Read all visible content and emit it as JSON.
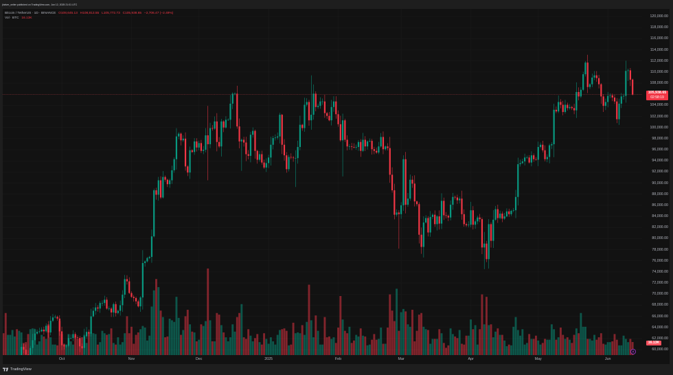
{
  "header": {
    "published_text": "jhalver_writer published on TradingView.com, Jun 12, 2025 21:01 UTC"
  },
  "legend": {
    "symbol": "Bitcoin / TetherUS · 1D · BINANCE",
    "open_label": "O",
    "open": "108,645.13",
    "high_label": "H",
    "high": "108,813.55",
    "low_label": "L",
    "low": "105,772.73",
    "close_label": "C",
    "close": "105,938.65",
    "change": "−2,706.47 (−2.49%)",
    "volume_label": "Vol · BTC",
    "volume_value": "16.13K"
  },
  "price_badge": {
    "price": "105,938.65",
    "countdown": "02:58:19"
  },
  "volume_badge": {
    "value": "16.13K"
  },
  "footer": {
    "brand": "TradingView",
    "logo_icon": "tradingview-logo-icon"
  },
  "icons": {
    "bolt": "lightning-bolt-icon"
  },
  "colors": {
    "up": "#089981",
    "down": "#f23645",
    "volume_up": "rgba(8,153,129,0.5)",
    "volume_down": "rgba(242,54,69,0.5)",
    "grid": "#1b1b1b",
    "price_line": "#f23645",
    "background": "#121212"
  },
  "chart_data": {
    "type": "candlestick",
    "title": "Bitcoin / TetherUS · 1D · BINANCE",
    "interval": "1D",
    "x_start": "2024-09-05",
    "x_end": "2025-06-12",
    "ylabel": "USDT",
    "ylim": [
      60000,
      120000
    ],
    "grid": true,
    "current_price": 105938.65,
    "first_open": 57.9,
    "closes_unit": "thousand USDT",
    "closes": [
      56.2,
      53.9,
      54.1,
      54.8,
      57.0,
      57.6,
      57.3,
      58.1,
      60.5,
      60.0,
      59.1,
      58.2,
      60.3,
      61.7,
      62.9,
      63.2,
      63.3,
      63.6,
      63.3,
      64.3,
      63.1,
      65.2,
      65.8,
      65.9,
      65.6,
      63.3,
      60.8,
      60.6,
      60.7,
      62.1,
      62.1,
      62.8,
      62.2,
      62.1,
      60.6,
      60.3,
      62.4,
      63.2,
      62.9,
      66.0,
      67.0,
      67.6,
      67.4,
      68.4,
      68.4,
      69.0,
      67.4,
      67.4,
      66.7,
      68.2,
      66.6,
      67.0,
      68.0,
      69.9,
      72.7,
      72.3,
      70.2,
      69.5,
      69.3,
      68.7,
      67.8,
      69.4,
      75.6,
      75.9,
      76.5,
      76.7,
      80.4,
      88.7,
      87.9,
      90.5,
      87.4,
      91.1,
      90.6,
      89.8,
      90.5,
      92.3,
      94.3,
      98.4,
      98.9,
      97.7,
      98.0,
      93.0,
      91.9,
      95.9,
      95.6,
      97.5,
      96.4,
      97.2,
      95.8,
      96.0,
      98.6,
      97.0,
      99.9,
      99.8,
      101.1,
      97.4,
      96.6,
      101.1,
      100.0,
      101.4,
      101.4,
      104.3,
      106.1,
      106.1,
      100.2,
      97.5,
      97.8,
      97.3,
      95.2,
      94.9,
      98.7,
      99.4,
      95.8,
      94.2,
      95.2,
      93.7,
      92.8,
      93.6,
      94.6,
      96.9,
      98.1,
      98.2,
      98.4,
      102.3,
      96.9,
      95.0,
      92.5,
      94.7,
      94.6,
      94.5,
      94.5,
      96.5,
      100.5,
      99.9,
      104.1,
      104.6,
      101.3,
      102.3,
      106.1,
      103.7,
      103.9,
      104.7,
      104.7,
      102.6,
      102.1,
      101.3,
      103.7,
      104.7,
      102.4,
      100.6,
      97.7,
      101.3,
      97.8,
      96.6,
      96.6,
      96.5,
      96.4,
      96.5,
      97.4,
      95.8,
      97.8,
      96.6,
      97.5,
      97.6,
      96.1,
      95.8,
      95.5,
      96.6,
      98.3,
      96.1,
      96.6,
      96.3,
      91.5,
      88.7,
      84.3,
      84.7,
      84.4,
      86.0,
      94.3,
      86.1,
      87.2,
      90.6,
      89.9,
      86.7,
      86.2,
      80.7,
      78.5,
      82.9,
      83.7,
      81.1,
      83.9,
      84.3,
      82.6,
      84.0,
      82.7,
      86.8,
      84.2,
      84.1,
      83.8,
      86.1,
      87.5,
      87.4,
      86.9,
      87.2,
      84.4,
      82.6,
      82.4,
      82.5,
      85.1,
      82.5,
      83.1,
      83.8,
      83.5,
      78.4,
      79.1,
      76.3,
      82.6,
      79.6,
      83.4,
      85.3,
      83.7,
      84.5,
      83.6,
      84.0,
      84.9,
      84.4,
      85.0,
      85.1,
      87.5,
      93.4,
      93.6,
      93.9,
      94.6,
      94.6,
      93.7,
      95.0,
      94.3,
      94.2,
      96.5,
      96.9,
      95.9,
      94.3,
      94.7,
      96.8,
      97.0,
      103.2,
      102.9,
      104.6,
      104.1,
      102.8,
      104.1,
      103.5,
      103.7,
      103.5,
      103.1,
      106.4,
      105.6,
      106.8,
      109.6,
      111.7,
      107.3,
      107.8,
      109.0,
      109.4,
      108.9,
      107.8,
      105.6,
      103.9,
      104.6,
      105.7,
      105.8,
      105.4,
      104.7,
      101.5,
      104.3,
      105.6,
      105.7,
      110.2,
      110.3,
      108.6,
      105.94
    ],
    "volumes_unit": "thousand BTC",
    "volumes": [
      27,
      52,
      25,
      25,
      31,
      23,
      32,
      30,
      28,
      15,
      16,
      26,
      32,
      33,
      32,
      13,
      17,
      25,
      23,
      20,
      38,
      22,
      13,
      13,
      12,
      42,
      26,
      14,
      13,
      26,
      17,
      13,
      23,
      20,
      20,
      22,
      25,
      15,
      27,
      28,
      27,
      26,
      13,
      16,
      30,
      27,
      25,
      26,
      33,
      15,
      13,
      22,
      13,
      16,
      27,
      48,
      27,
      35,
      14,
      25,
      28,
      32,
      36,
      34,
      18,
      24,
      60,
      80,
      94,
      84,
      55,
      47,
      22,
      23,
      45,
      43,
      41,
      72,
      46,
      25,
      31,
      48,
      56,
      38,
      29,
      28,
      17,
      19,
      38,
      36,
      42,
      107,
      43,
      17,
      17,
      52,
      50,
      37,
      28,
      22,
      17,
      22,
      38,
      29,
      47,
      52,
      63,
      22,
      20,
      32,
      24,
      17,
      21,
      26,
      16,
      13,
      27,
      20,
      14,
      22,
      17,
      13,
      25,
      31,
      32,
      33,
      30,
      12,
      13,
      40,
      27,
      28,
      27,
      37,
      25,
      41,
      87,
      43,
      22,
      49,
      30,
      13,
      13,
      47,
      22,
      23,
      20,
      22,
      15,
      34,
      73,
      44,
      30,
      27,
      35,
      15,
      18,
      25,
      23,
      33,
      24,
      23,
      12,
      13,
      19,
      26,
      19,
      20,
      34,
      14,
      14,
      34,
      75,
      55,
      42,
      82,
      30,
      53,
      57,
      54,
      38,
      35,
      56,
      17,
      30,
      50,
      52,
      35,
      32,
      31,
      14,
      20,
      20,
      20,
      32,
      27,
      15,
      9,
      12,
      33,
      26,
      23,
      21,
      31,
      14,
      13,
      24,
      24,
      44,
      32,
      37,
      13,
      32,
      75,
      38,
      72,
      37,
      38,
      22,
      29,
      33,
      25,
      25,
      18,
      11,
      13,
      12,
      35,
      47,
      31,
      24,
      32,
      13,
      15,
      26,
      20,
      20,
      24,
      18,
      13,
      15,
      20,
      19,
      19,
      38,
      32,
      19,
      22,
      34,
      25,
      20,
      22,
      19,
      15,
      25,
      33,
      27,
      52,
      35,
      35,
      20,
      20,
      18,
      25,
      19,
      22,
      27,
      14,
      13,
      16,
      16,
      17,
      26,
      19,
      12,
      12,
      24,
      20,
      16,
      20,
      16.13
    ],
    "wick_overrides": {
      "67": [
        89.0,
        80.2
      ],
      "91": [
        103.9,
        90.5
      ],
      "106": [
        98.0,
        92.2
      ],
      "130": [
        95.9,
        89.3
      ],
      "137": [
        109.4,
        99.6
      ],
      "151": [
        102.5,
        91.2
      ],
      "176": [
        85.1,
        78.2
      ],
      "178": [
        95.0,
        85.0
      ],
      "187": [
        84.0,
        76.6
      ],
      "213": [
        83.8,
        77.2
      ],
      "214": [
        81.2,
        74.5
      ],
      "216": [
        83.5,
        74.6
      ],
      "259": [
        111.98,
        109.2
      ],
      "278": [
        110.6,
        108.4
      ]
    },
    "last_candle": {
      "date": "2025-06-12",
      "open": 108645.13,
      "high": 108813.55,
      "low": 105772.73,
      "close": 105938.65,
      "change": -2706.47,
      "change_pct": -2.49,
      "volume": "16.13K"
    },
    "y_axis": {
      "labels": [
        "120,000.00",
        "118,000.00",
        "116,000.00",
        "114,000.00",
        "112,000.00",
        "110,000.00",
        "108,000.00",
        "106,000.00",
        "104,000.00",
        "102,000.00",
        "100,000.00",
        "98,000.00",
        "96,000.00",
        "94,000.00",
        "92,000.00",
        "90,000.00",
        "88,000.00",
        "86,000.00",
        "84,000.00",
        "82,000.00",
        "80,000.00",
        "78,000.00",
        "76,000.00",
        "74,000.00",
        "72,000.00",
        "70,000.00",
        "68,000.00",
        "66,000.00",
        "64,000.00",
        "62,000.00",
        "60,000.00"
      ]
    },
    "x_axis": {
      "labels": [
        {
          "text": "Oct",
          "index": 26
        },
        {
          "text": "Nov",
          "index": 57
        },
        {
          "text": "Dec",
          "index": 87
        },
        {
          "text": "2025",
          "index": 118
        },
        {
          "text": "Feb",
          "index": 149
        },
        {
          "text": "Mar",
          "index": 177
        },
        {
          "text": "Apr",
          "index": 208
        },
        {
          "text": "May",
          "index": 238
        },
        {
          "text": "Jun",
          "index": 269
        }
      ]
    },
    "legend_position": "top-left"
  }
}
